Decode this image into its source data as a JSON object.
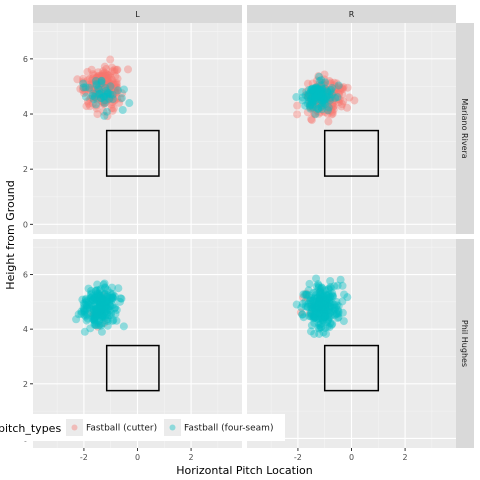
{
  "chart_data": {
    "type": "scatter",
    "xlabel": "Horizontal Pitch Location",
    "ylabel": "Height from Ground",
    "xlim": [
      -3.9,
      3.9
    ],
    "ylim": [
      -0.35,
      7.3
    ],
    "x_ticks": [
      "-2",
      "0",
      "2"
    ],
    "x_tick_values": [
      -2,
      0,
      2
    ],
    "y_ticks": [
      "0",
      "2",
      "4",
      "6"
    ],
    "y_tick_values": [
      0,
      2,
      4,
      6
    ],
    "grid": true,
    "column_facets": [
      "L",
      "R"
    ],
    "row_facets": [
      "Mariano Rivera",
      "Phil Hughes"
    ],
    "strike_zone": {
      "L": {
        "x": [
          -1.15,
          0.8
        ],
        "y": [
          1.75,
          3.4
        ]
      },
      "R": {
        "x": [
          -1.0,
          1.0
        ],
        "y": [
          1.75,
          3.4
        ]
      }
    },
    "legend": {
      "title": "pitch_types",
      "position": "bottom",
      "entries": [
        "Fastball (cutter)",
        "Fastball (four-seam)"
      ]
    },
    "colors": {
      "cutter": "#F8766D",
      "four_seam": "#00BFC4"
    },
    "point_opacity": 0.4,
    "clusters": [
      {
        "pitcher": "Mariano Rivera",
        "batter_side": "L",
        "series": "Fastball (cutter)",
        "center": [
          -1.3,
          4.95
        ],
        "spread": [
          0.35,
          0.38
        ],
        "count": 190
      },
      {
        "pitcher": "Mariano Rivera",
        "batter_side": "L",
        "series": "Fastball (four-seam)",
        "center": [
          -1.35,
          4.8
        ],
        "spread": [
          0.4,
          0.4
        ],
        "count": 45
      },
      {
        "pitcher": "Mariano Rivera",
        "batter_side": "R",
        "series": "Fastball (cutter)",
        "center": [
          -0.95,
          4.6
        ],
        "spread": [
          0.4,
          0.35
        ],
        "count": 160
      },
      {
        "pitcher": "Mariano Rivera",
        "batter_side": "R",
        "series": "Fastball (four-seam)",
        "center": [
          -1.25,
          4.65
        ],
        "spread": [
          0.3,
          0.3
        ],
        "count": 110
      },
      {
        "pitcher": "Phil Hughes",
        "batter_side": "L",
        "series": "Fastball (cutter)",
        "center": [
          -1.4,
          4.9
        ],
        "spread": [
          0.3,
          0.3
        ],
        "count": 6
      },
      {
        "pitcher": "Phil Hughes",
        "batter_side": "L",
        "series": "Fastball (four-seam)",
        "center": [
          -1.4,
          4.85
        ],
        "spread": [
          0.33,
          0.35
        ],
        "count": 240
      },
      {
        "pitcher": "Phil Hughes",
        "batter_side": "R",
        "series": "Fastball (cutter)",
        "center": [
          -1.6,
          4.9
        ],
        "spread": [
          0.3,
          0.35
        ],
        "count": 8
      },
      {
        "pitcher": "Phil Hughes",
        "batter_side": "R",
        "series": "Fastball (four-seam)",
        "center": [
          -1.1,
          4.85
        ],
        "spread": [
          0.35,
          0.38
        ],
        "count": 240
      }
    ]
  }
}
